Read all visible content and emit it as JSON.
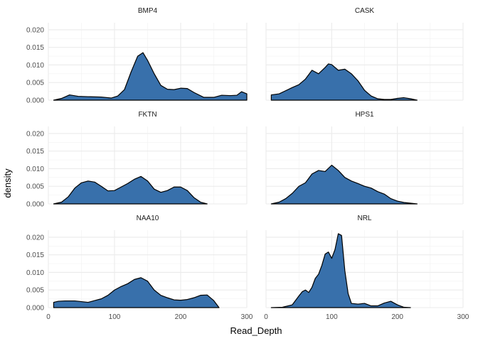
{
  "chart_data": {
    "type": "area",
    "xlabel": "Read_Depth",
    "ylabel": "density",
    "xlim": [
      0,
      300
    ],
    "ylim": [
      0,
      0.022
    ],
    "x_ticks": [
      0,
      100,
      200,
      300
    ],
    "x_tick_labels": [
      "0",
      "100",
      "200",
      "300"
    ],
    "y_ticks": [
      0,
      0.005,
      0.01,
      0.015,
      0.02
    ],
    "y_tick_labels": [
      "0.000",
      "0.005",
      "0.010",
      "0.015",
      "0.020"
    ],
    "fill_color": "#3870ab",
    "line_color": "#000000",
    "grid": true,
    "facets": [
      {
        "name": "BMP4",
        "x": [
          8,
          20,
          32,
          45,
          60,
          80,
          95,
          105,
          115,
          125,
          135,
          143,
          150,
          160,
          170,
          180,
          190,
          200,
          210,
          220,
          235,
          250,
          262,
          275,
          285,
          292,
          300
        ],
        "y": [
          0,
          0.0005,
          0.0015,
          0.0011,
          0.001,
          0.0009,
          0.0006,
          0.0012,
          0.003,
          0.008,
          0.0125,
          0.0135,
          0.0113,
          0.0075,
          0.0042,
          0.0031,
          0.003,
          0.0034,
          0.0033,
          0.0022,
          0.0008,
          0.0008,
          0.0014,
          0.0013,
          0.0014,
          0.0024,
          0.0018
        ]
      },
      {
        "name": "CASK",
        "x": [
          8,
          20,
          30,
          40,
          50,
          60,
          70,
          80,
          90,
          95,
          100,
          110,
          120,
          130,
          140,
          150,
          160,
          170,
          180,
          190,
          200,
          210,
          220,
          230
        ],
        "y": [
          0.0015,
          0.0018,
          0.0027,
          0.0036,
          0.0044,
          0.006,
          0.0085,
          0.0075,
          0.0093,
          0.0103,
          0.0101,
          0.0085,
          0.0088,
          0.0075,
          0.0055,
          0.0028,
          0.0012,
          0.0004,
          0.0002,
          0.0002,
          0.0005,
          0.0007,
          0.0004,
          0
        ]
      },
      {
        "name": "FKTN",
        "x": [
          8,
          20,
          30,
          40,
          50,
          60,
          70,
          80,
          90,
          100,
          110,
          120,
          130,
          140,
          150,
          160,
          170,
          180,
          190,
          200,
          210,
          220,
          230,
          240
        ],
        "y": [
          0,
          0.0005,
          0.002,
          0.0045,
          0.006,
          0.0065,
          0.0062,
          0.005,
          0.0037,
          0.0038,
          0.0048,
          0.0058,
          0.007,
          0.0078,
          0.0065,
          0.0042,
          0.0033,
          0.0038,
          0.0048,
          0.0048,
          0.0038,
          0.0018,
          0.0005,
          0
        ]
      },
      {
        "name": "HPS1",
        "x": [
          8,
          20,
          30,
          40,
          50,
          60,
          70,
          80,
          90,
          100,
          110,
          120,
          130,
          140,
          150,
          160,
          170,
          180,
          190,
          200,
          210,
          220,
          230
        ],
        "y": [
          0,
          0.0005,
          0.0015,
          0.003,
          0.005,
          0.006,
          0.0085,
          0.0095,
          0.0092,
          0.011,
          0.0095,
          0.0075,
          0.0065,
          0.0058,
          0.005,
          0.0045,
          0.0035,
          0.0028,
          0.0015,
          0.0008,
          0.0004,
          0.0002,
          0
        ]
      },
      {
        "name": "NAA10",
        "x": [
          8,
          15,
          25,
          40,
          50,
          60,
          70,
          80,
          90,
          100,
          110,
          120,
          130,
          140,
          150,
          160,
          170,
          180,
          190,
          200,
          210,
          220,
          230,
          240,
          250,
          258
        ],
        "y": [
          0.0015,
          0.0018,
          0.0019,
          0.0019,
          0.0017,
          0.0015,
          0.002,
          0.0025,
          0.0035,
          0.005,
          0.006,
          0.0068,
          0.008,
          0.0085,
          0.0075,
          0.005,
          0.0035,
          0.0028,
          0.0022,
          0.0021,
          0.0023,
          0.0028,
          0.0035,
          0.0036,
          0.002,
          0
        ]
      },
      {
        "name": "NRL",
        "x": [
          8,
          25,
          40,
          50,
          55,
          60,
          65,
          70,
          75,
          80,
          85,
          90,
          95,
          100,
          105,
          110,
          115,
          120,
          125,
          130,
          140,
          150,
          160,
          170,
          180,
          190,
          200,
          210,
          220
        ],
        "y": [
          0,
          0.0001,
          0.0008,
          0.0033,
          0.0045,
          0.005,
          0.0043,
          0.0058,
          0.0083,
          0.0095,
          0.012,
          0.0152,
          0.0158,
          0.014,
          0.0165,
          0.021,
          0.0205,
          0.0105,
          0.004,
          0.0012,
          0.001,
          0.0012,
          0.0005,
          0.0005,
          0.0013,
          0.0018,
          0.0008,
          0.0001,
          0
        ]
      }
    ]
  }
}
